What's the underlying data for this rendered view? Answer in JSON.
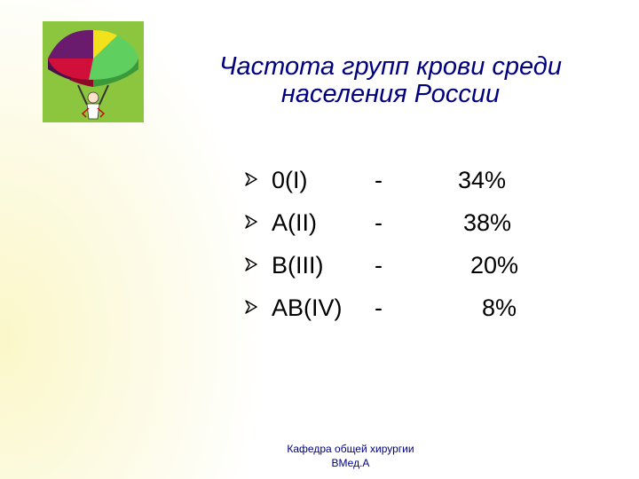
{
  "slide": {
    "title_line1": "Частота групп крови среди",
    "title_line2": "населения России",
    "items": [
      {
        "group": "0(I)",
        "dash": "-",
        "percent": "34%"
      },
      {
        "group": "A(II)",
        "dash": "-",
        "percent": "38%"
      },
      {
        "group": "B(III)",
        "dash": "-",
        "percent": "20%"
      },
      {
        "group": "AB(IV)",
        "dash": "-",
        "percent": "8%"
      }
    ],
    "footer_line1": "Кафедра общей хирургии",
    "footer_line2": "ВМед.А"
  },
  "icons": {
    "logo": "pie-chart-figure-icon",
    "bullet": "arrowhead-bullet-icon"
  },
  "colors": {
    "title": "#000080",
    "logo_bg": "#8cc63f",
    "pie_purple": "#6a1b6e",
    "pie_red": "#d0103a",
    "pie_green": "#5fcf5f",
    "pie_yellow": "#f2e21b"
  }
}
